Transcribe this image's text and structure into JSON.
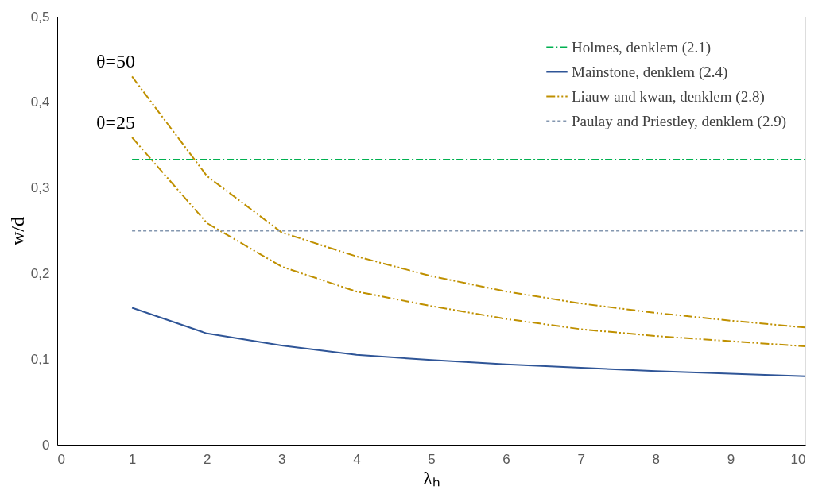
{
  "chart_data": {
    "type": "line",
    "xlabel": "λₕ",
    "ylabel": "w/d",
    "xlim": [
      0,
      10
    ],
    "xticks": [
      0,
      1,
      2,
      3,
      4,
      5,
      6,
      7,
      8,
      9,
      10
    ],
    "ylim": [
      0,
      0.5
    ],
    "yticks": [
      0,
      {
        "value": 0.1,
        "label": "0,1"
      },
      {
        "value": 0.2,
        "label": "0,2"
      },
      {
        "value": 0.3,
        "label": "0,3"
      },
      {
        "value": 0.4,
        "label": "0,4"
      },
      {
        "value": 0.5,
        "label": "0,5"
      }
    ],
    "grid": false,
    "legend": "top right",
    "marker": "none",
    "series": [
      {
        "name": "Holmes, denklem (2.1)",
        "color": "#00b050",
        "line_style": "dashdot",
        "x": [
          1,
          10
        ],
        "values": [
          0.333,
          0.333
        ]
      },
      {
        "name": "Mainstone, denklem (2.4)",
        "color": "#2f5597",
        "line_style": "solid",
        "x": [
          1,
          2,
          3,
          4,
          5,
          6,
          7,
          8,
          9,
          10
        ],
        "values": [
          0.16,
          0.13,
          0.116,
          0.105,
          0.099,
          0.094,
          0.09,
          0.086,
          0.083,
          0.08
        ]
      },
      {
        "name": "Liauw and kwan, denklem (2.8)",
        "color": "#bf9000",
        "line_style": "dashdotdot",
        "x": [
          1,
          2,
          3,
          4,
          5,
          6,
          7,
          8,
          9,
          10
        ],
        "values": [
          0.43,
          0.314,
          0.248,
          0.22,
          0.197,
          0.179,
          0.165,
          0.154,
          0.145,
          0.137
        ]
      },
      {
        "color": "#bf9000",
        "line_style": "dashdotdot",
        "x": [
          1,
          2,
          3,
          4,
          5,
          6,
          7,
          8,
          9,
          10
        ],
        "values": [
          0.359,
          0.259,
          0.208,
          0.179,
          0.162,
          0.147,
          0.135,
          0.127,
          0.121,
          0.115
        ]
      },
      {
        "name": "Paulay and Priestley, denklem (2.9)",
        "color": "#8497b0",
        "line_style": "dashed",
        "x": [
          1,
          10
        ],
        "values": [
          0.25,
          0.25
        ]
      }
    ],
    "annotations": [
      {
        "text": "θ=50",
        "x": 1,
        "y": 0.43
      },
      {
        "text": "θ=25",
        "x": 1,
        "y": 0.359
      }
    ]
  }
}
